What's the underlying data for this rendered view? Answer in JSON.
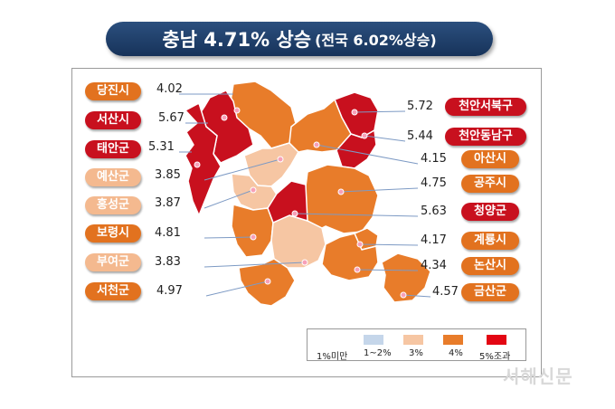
{
  "title": {
    "main": "충남 4.71% 상승",
    "sub": "(전국 6.02%상승)"
  },
  "colors": {
    "c1": "#c5d6ea",
    "c2": "#f6c6a3",
    "c3": "#e87c2a",
    "c4": "#c8101e"
  },
  "regions": [
    {
      "name": "당진시",
      "value": "4.02",
      "level": "c3"
    },
    {
      "name": "서산시",
      "value": "5.67",
      "level": "c4"
    },
    {
      "name": "태안군",
      "value": "5.31",
      "level": "c4"
    },
    {
      "name": "예산군",
      "value": "3.85",
      "level": "c2"
    },
    {
      "name": "홍성군",
      "value": "3.87",
      "level": "c2"
    },
    {
      "name": "보령시",
      "value": "4.81",
      "level": "c3"
    },
    {
      "name": "부여군",
      "value": "3.83",
      "level": "c2"
    },
    {
      "name": "서천군",
      "value": "4.97",
      "level": "c3"
    },
    {
      "name": "천안서북구",
      "value": "5.72",
      "level": "c4"
    },
    {
      "name": "천안동남구",
      "value": "5.44",
      "level": "c4"
    },
    {
      "name": "아산시",
      "value": "4.15",
      "level": "c3"
    },
    {
      "name": "공주시",
      "value": "4.75",
      "level": "c3"
    },
    {
      "name": "청양군",
      "value": "5.63",
      "level": "c4"
    },
    {
      "name": "계룡시",
      "value": "4.17",
      "level": "c3"
    },
    {
      "name": "논산시",
      "value": "4.34",
      "level": "c3"
    },
    {
      "name": "금산군",
      "value": "4.57",
      "level": "c3"
    }
  ],
  "legend": [
    {
      "label": "1%미만",
      "color": ""
    },
    {
      "label": "1~2%",
      "color": "#c5d6ea"
    },
    {
      "label": "3%",
      "color": "#f6c6a3"
    },
    {
      "label": "4%",
      "color": "#e87c2a"
    },
    {
      "label": "5%조과",
      "color": "#e30613"
    }
  ],
  "watermark": "서해신문"
}
